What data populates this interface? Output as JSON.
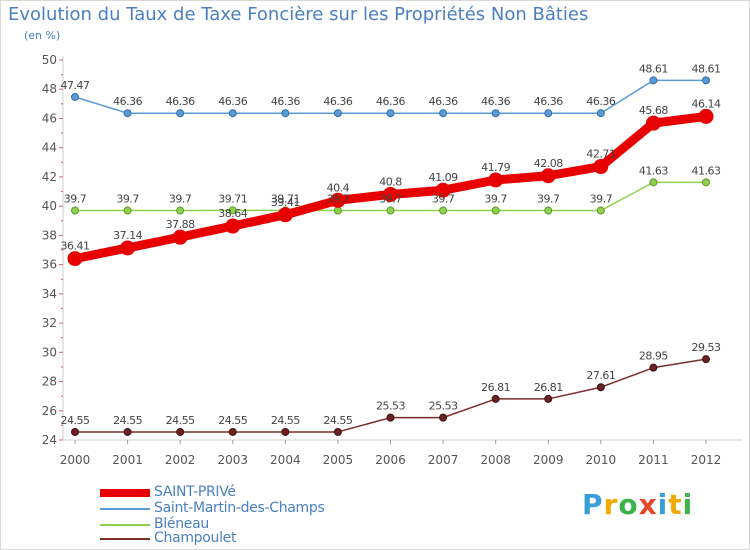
{
  "header": {
    "title": "Evolution du Taux de Taxe Foncière sur les Propriétés Non Bâties",
    "unit": "(en %)"
  },
  "brand": {
    "letters": [
      "P",
      "r",
      "o",
      "x",
      "i",
      "t",
      "i"
    ],
    "colors": [
      "#3a9fd8",
      "#f2a900",
      "#3bb54a",
      "#e8462a",
      "#3a9fd8",
      "#f2a900",
      "#3bb54a"
    ]
  },
  "chart_data": {
    "type": "line",
    "title": "Evolution du Taux de Taxe Foncière sur les Propriétés Non Bâties",
    "ylabel": "(en %)",
    "xlabel": "",
    "ylim": [
      24,
      50
    ],
    "yticks": [
      24,
      26,
      28,
      30,
      32,
      34,
      36,
      38,
      40,
      42,
      44,
      46,
      48,
      50
    ],
    "grid": false,
    "categories": [
      "2000",
      "2001",
      "2002",
      "2003",
      "2004",
      "2005",
      "2006",
      "2007",
      "2008",
      "2009",
      "2010",
      "2011",
      "2012"
    ],
    "series": [
      {
        "name": "SAINT-PRIVé",
        "color": "#e80000",
        "values": [
          36.41,
          37.14,
          37.88,
          38.64,
          39.41,
          40.4,
          40.8,
          41.09,
          41.79,
          42.08,
          42.71,
          45.68,
          46.14
        ],
        "labels": [
          "36.41",
          "37.14",
          "37.88",
          "38.64",
          "39.41",
          "40.4",
          "40.8",
          "41.09",
          "41.79",
          "42.08",
          "42.71",
          "45.68",
          "46.14"
        ]
      },
      {
        "name": "Saint-Martin-des-Champs",
        "color": "#5b9bd5",
        "values": [
          47.47,
          46.36,
          46.36,
          46.36,
          46.36,
          46.36,
          46.36,
          46.36,
          46.36,
          46.36,
          46.36,
          48.61,
          48.61
        ],
        "labels": [
          "47.47",
          "46.36",
          "46.36",
          "46.36",
          "46.36",
          "46.36",
          "46.36",
          "46.36",
          "46.36",
          "46.36",
          "46.36",
          "48.61",
          "48.61"
        ]
      },
      {
        "name": "Bléneau",
        "color": "#8fd14f",
        "values": [
          39.7,
          39.7,
          39.7,
          39.71,
          39.71,
          39.7,
          39.7,
          39.7,
          39.7,
          39.7,
          39.7,
          41.63,
          41.63
        ],
        "labels": [
          "39.7",
          "39.7",
          "39.7",
          "39.71",
          "39.71",
          "39.7",
          "39.7",
          "39.7",
          "39.7",
          "39.7",
          "39.7",
          "41.63",
          "41.63"
        ]
      },
      {
        "name": "Champoulet",
        "color": "#7b2f2f",
        "values": [
          24.55,
          24.55,
          24.55,
          24.55,
          24.55,
          24.55,
          25.53,
          25.53,
          26.81,
          26.81,
          27.61,
          28.95,
          29.53
        ],
        "labels": [
          "24.55",
          "24.55",
          "24.55",
          "24.55",
          "24.55",
          "24.55",
          "25.53",
          "25.53",
          "26.81",
          "26.81",
          "27.61",
          "28.95",
          "29.53"
        ]
      }
    ],
    "legend_position": "bottom-left"
  }
}
